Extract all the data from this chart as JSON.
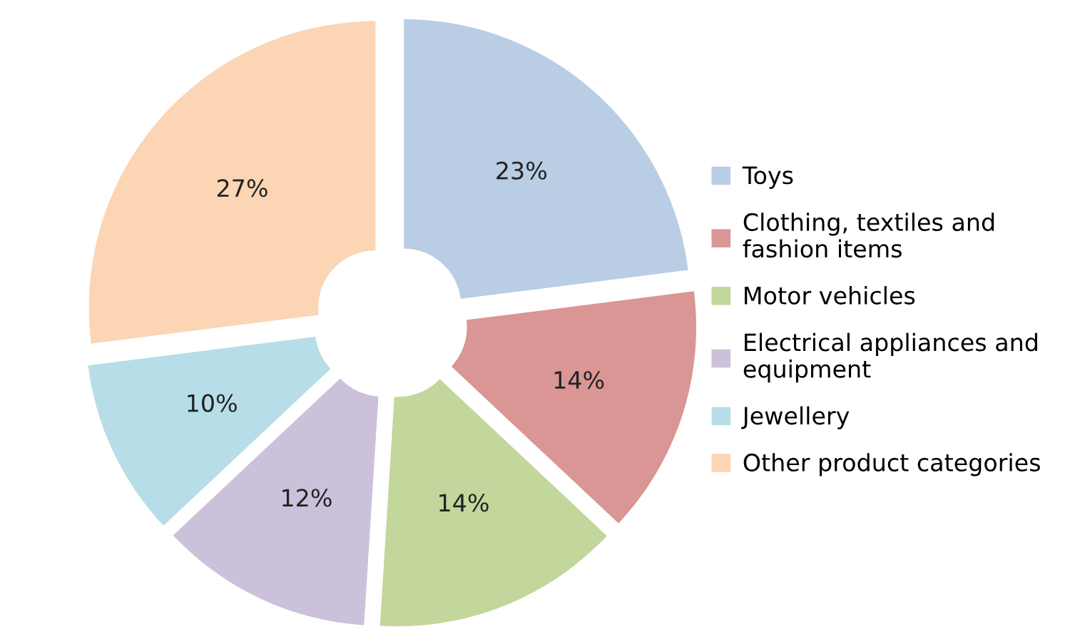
{
  "chart_data": {
    "type": "donut",
    "categories": [
      "Toys",
      "Clothing, textiles and\nfashion items",
      "Motor vehicles",
      "Electrical appliances and\nequipment",
      "Jewellery",
      "Other product categories"
    ],
    "values": [
      23,
      14,
      14,
      12,
      10,
      27
    ],
    "colors": [
      "#b9cde5",
      "#d99694",
      "#c3d69b",
      "#ccc1da",
      "#b7dee8",
      "#fcd5b5"
    ],
    "value_labels": [
      "23%",
      "14%",
      "14%",
      "12%",
      "10%",
      "27%"
    ],
    "legend": "right"
  }
}
